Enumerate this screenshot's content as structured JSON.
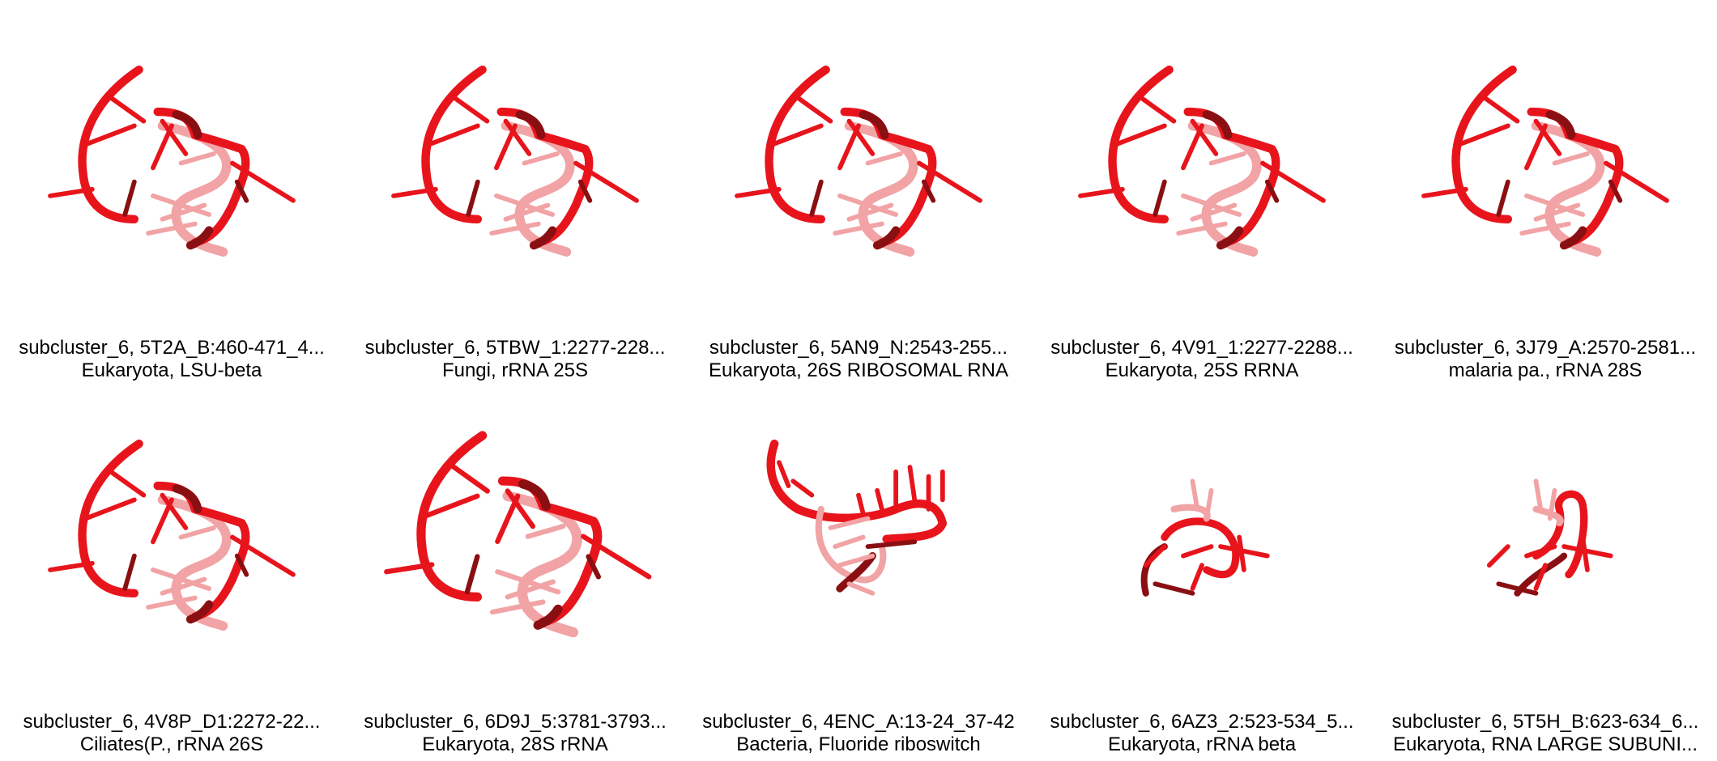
{
  "panels": [
    {
      "title": "subcluster_6, 5T2A_B:460-471_4...",
      "subtitle": "Eukaryota, LSU-beta",
      "variant": "loop"
    },
    {
      "title": "subcluster_6, 5TBW_1:2277-228...",
      "subtitle": "Fungi, rRNA 25S",
      "variant": "loop"
    },
    {
      "title": "subcluster_6, 5AN9_N:2543-255...",
      "subtitle": "Eukaryota, 26S RIBOSOMAL RNA",
      "variant": "loop"
    },
    {
      "title": "subcluster_6, 4V91_1:2277-2288...",
      "subtitle": "Eukaryota, 25S RRNA",
      "variant": "loop"
    },
    {
      "title": "subcluster_6, 3J79_A:2570-2581...",
      "subtitle": "malaria pa., rRNA 28S",
      "variant": "loop"
    },
    {
      "title": "subcluster_6, 4V8P_D1:2272-22...",
      "subtitle": "Ciliates(P., rRNA 26S",
      "variant": "loop"
    },
    {
      "title": "subcluster_6, 6D9J_5:3781-3793...",
      "subtitle": "Eukaryota, 28S rRNA",
      "variant": "bigloop"
    },
    {
      "title": "subcluster_6, 4ENC_A:13-24_37-42",
      "subtitle": "Bacteria, Fluoride riboswitch",
      "variant": "hook"
    },
    {
      "title": "subcluster_6, 6AZ3_2:523-534_5...",
      "subtitle": "Eukaryota, rRNA beta",
      "variant": "small"
    },
    {
      "title": "subcluster_6, 5T5H_B:623-634_6...",
      "subtitle": "Eukaryota, RNA LARGE SUBUNI...",
      "variant": "small2"
    }
  ],
  "colors": {
    "backbone": "#e8141c",
    "dark": "#8a0f12",
    "faded": "#f1a3a5",
    "background": "#ffffff"
  }
}
